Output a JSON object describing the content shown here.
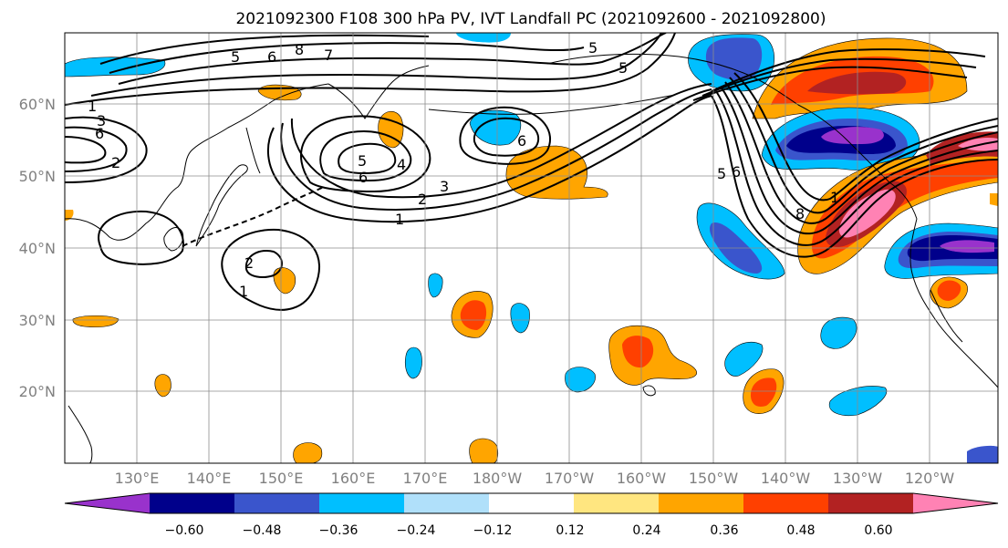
{
  "map": {
    "title": "2021092300 F108 300 hPa PV, IVT Landfall PC (2021092600 - 2021092800)",
    "lon_ticks": [
      "130°E",
      "140°E",
      "150°E",
      "160°E",
      "170°E",
      "180°W",
      "170°W",
      "160°W",
      "150°W",
      "140°W",
      "130°W",
      "120°W"
    ],
    "lat_ticks": [
      "60°N",
      "50°N",
      "40°N",
      "30°N",
      "20°N"
    ],
    "contour_labels": [
      "1",
      "2",
      "3",
      "4",
      "5",
      "6",
      "7",
      "8"
    ]
  },
  "colorbar": {
    "tick_labels": [
      "−0.60",
      "−0.48",
      "−0.36",
      "−0.24",
      "−0.12",
      "0.12",
      "0.24",
      "0.36",
      "0.48",
      "0.60"
    ],
    "colors": [
      "#9932cc",
      "#00008b",
      "#3a55cc",
      "#00bfff",
      "#b0e0fa",
      "#ffffff",
      "#ffe680",
      "#ffa500",
      "#ff4000",
      "#b22222",
      "#ff82b4"
    ]
  }
}
